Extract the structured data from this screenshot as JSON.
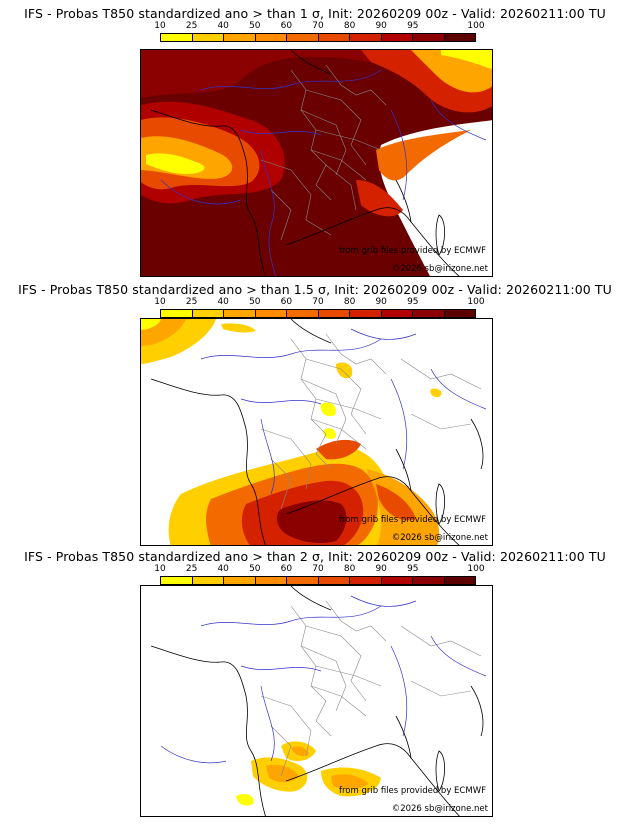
{
  "colorbar": {
    "ticks": [
      "10",
      "25",
      "40",
      "50",
      "60",
      "70",
      "80",
      "90",
      "95",
      "100"
    ],
    "colors": [
      "#ffff00",
      "#ffcf00",
      "#ffa500",
      "#ff8c00",
      "#f26a00",
      "#e84a00",
      "#d42200",
      "#b00000",
      "#8b0000",
      "#5c0000"
    ]
  },
  "panels": [
    {
      "title": "IFS - Probas T850  standardized ano > than 1 σ, Init: 20260209 00z - Valid: 20260211:00 TU",
      "credit": "from grib files provided by ECMWF",
      "copyright": "©2026 sb@irizone.net"
    },
    {
      "title": "IFS - Probas T850  standardized ano > than 1.5 σ, Init: 20260209 00z - Valid: 20260211:00 TU",
      "credit": "from grib files provided by ECMWF",
      "copyright": "©2026 sb@irizone.net"
    },
    {
      "title": "IFS - Probas T850  standardized ano > than 2 σ, Init: 20260209 00z - Valid: 20260211:00 TU",
      "credit": "from grib files provided by ECMWF",
      "copyright": "©2026 sb@irizone.net"
    }
  ]
}
